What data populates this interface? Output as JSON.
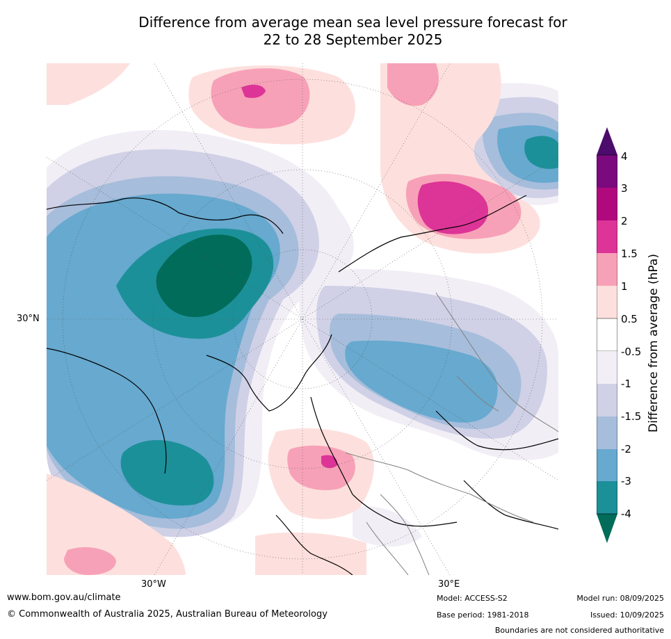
{
  "title": {
    "line1": "Difference from average mean sea level pressure forecast for",
    "line2": "22 to 28 September 2025"
  },
  "axes": {
    "lat_label": "30°N",
    "lon_labels": [
      "30°W",
      "30°E"
    ]
  },
  "legend": {
    "title": "Difference from average (hPa)",
    "ticks": [
      "4",
      "3",
      "2",
      "1.5",
      "1",
      "0.5",
      "-0.5",
      "-1",
      "-1.5",
      "-2",
      "-3",
      "-4"
    ],
    "colors": {
      "gt4": "#4b0c6b",
      "3_4": "#7b0a7e",
      "2_3": "#b0097e",
      "1.5_2": "#dd3497",
      "1_1.5": "#f7a1b8",
      "0.5_1": "#fde0dd",
      "neutral": "#ffffff",
      "-0.5_-1": "#f1eef6",
      "-1_-1.5": "#d0d1e6",
      "-1.5_-2": "#a6bddb",
      "-2_-3": "#67a9cf",
      "-3_-4": "#1c9099",
      "lt-4": "#016c59"
    }
  },
  "footer": {
    "website": "www.bom.gov.au/climate",
    "copyright": "© Commonwealth of Australia 2025, Australian Bureau of Meteorology",
    "model": "Model: ACCESS-S2",
    "base_period": "Base period: 1981-2018",
    "model_run": "Model run: 08/09/2025",
    "issued": "Issued: 10/09/2025",
    "boundaries_note": "Boundaries are not considered authoritative"
  }
}
